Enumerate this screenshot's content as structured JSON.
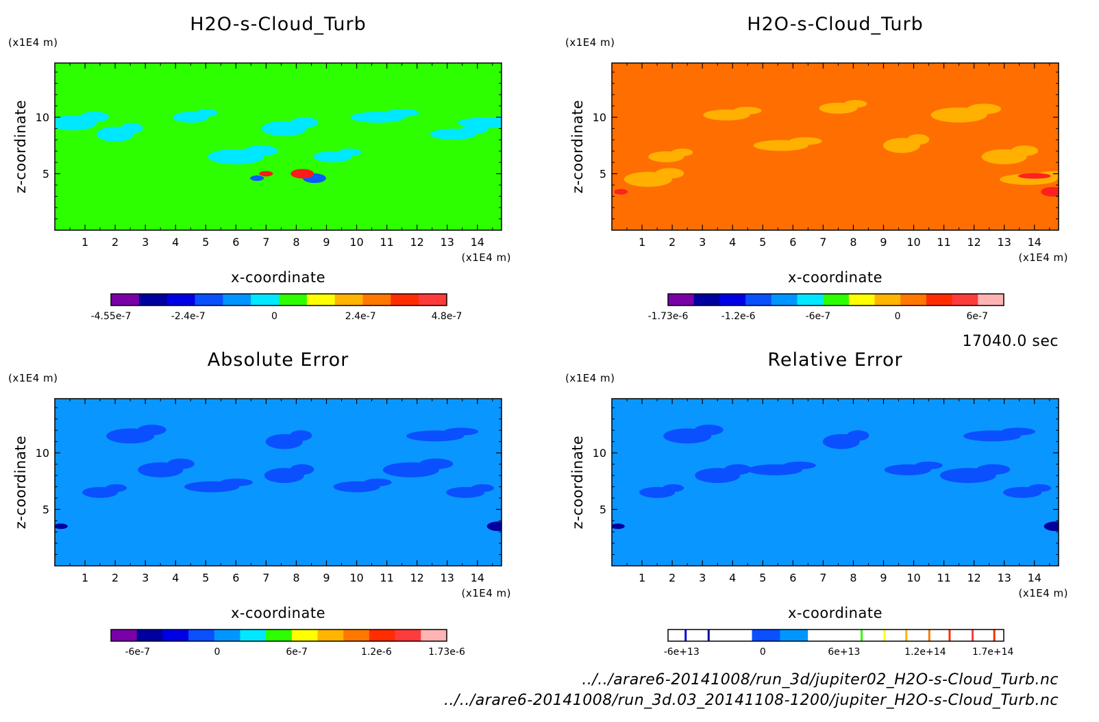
{
  "chart_data": [
    {
      "type": "heatmap",
      "title": "H2O-s-Cloud_Turb",
      "xlabel": "x-coordinate",
      "ylabel": "z-coordinate",
      "x_unit": "(x1E4 m)",
      "z_unit": "(x1E4 m)",
      "x_ticks": [
        "1",
        "2",
        "3",
        "4",
        "5",
        "6",
        "7",
        "8",
        "9",
        "10",
        "11",
        "12",
        "13",
        "14"
      ],
      "z_ticks": [
        "5",
        "10"
      ],
      "xlim": [
        0,
        14.8
      ],
      "zlim": [
        0,
        14.8
      ],
      "background_color": "#2dff00",
      "features": [
        {
          "color": "#00e8ff",
          "shapes": [
            [
              4.5,
              10
            ],
            [
              7.6,
              9.0
            ],
            [
              10.7,
              10
            ],
            [
              2.0,
              8.5
            ],
            [
              13.2,
              8.5
            ],
            [
              6.0,
              6.5
            ],
            [
              9.2,
              6.5
            ],
            [
              0.6,
              9.5
            ],
            [
              14.3,
              9.5
            ]
          ]
        },
        {
          "color": "#0a5aff",
          "shapes": [
            [
              6.7,
              4.6
            ],
            [
              8.6,
              4.6
            ]
          ]
        },
        {
          "color": "#ff1a1a",
          "shapes": [
            [
              7.0,
              5.0
            ],
            [
              8.2,
              5.0
            ]
          ]
        }
      ],
      "colorbar": {
        "colors": [
          "#7a00a8",
          "#0000a0",
          "#0000e6",
          "#0a50ff",
          "#0096ff",
          "#00e8ff",
          "#2dff00",
          "#ffff00",
          "#ffb400",
          "#ff7800",
          "#ff2d00",
          "#ff3c3c"
        ],
        "tick_labels": [
          "-4.55e-7",
          "-2.4e-7",
          "0",
          "2.4e-7",
          "4.8e-7"
        ],
        "tick_values": [
          -4.55e-07,
          -2.4e-07,
          0,
          2.4e-07,
          4.8e-07
        ],
        "range": [
          -4.55e-07,
          4.8e-07
        ]
      }
    },
    {
      "type": "heatmap",
      "title": "H2O-s-Cloud_Turb",
      "xlabel": "x-coordinate",
      "ylabel": "z-coordinate",
      "x_unit": "(x1E4 m)",
      "z_unit": "(x1E4 m)",
      "x_ticks": [
        "1",
        "2",
        "3",
        "4",
        "5",
        "6",
        "7",
        "8",
        "9",
        "10",
        "11",
        "12",
        "13",
        "14"
      ],
      "z_ticks": [
        "5",
        "10"
      ],
      "xlim": [
        0,
        14.8
      ],
      "zlim": [
        0,
        14.8
      ],
      "background_color": "#ff6e00",
      "features": [
        {
          "color": "#ffb000",
          "shapes": [
            [
              1.8,
              6.5
            ],
            [
              13.0,
              6.5
            ],
            [
              5.6,
              7.5
            ],
            [
              9.6,
              7.5
            ],
            [
              3.8,
              10.2
            ],
            [
              11.5,
              10.2
            ],
            [
              7.5,
              10.8
            ],
            [
              1.2,
              4.5
            ],
            [
              13.8,
              4.5
            ]
          ]
        },
        {
          "color": "#ff2020",
          "shapes": [
            [
              0.3,
              3.4
            ],
            [
              14.6,
              3.4
            ],
            [
              14.0,
              4.8
            ]
          ]
        }
      ],
      "colorbar": {
        "colors": [
          "#7a00a8",
          "#0000a0",
          "#0000e6",
          "#0a50ff",
          "#0096ff",
          "#00e8ff",
          "#2dff00",
          "#ffff00",
          "#ffb400",
          "#ff7800",
          "#ff2d00",
          "#ff3c3c",
          "#ffb4b4"
        ],
        "tick_labels": [
          "-1.73e-6",
          "-1.2e-6",
          "-6e-7",
          "0",
          "6e-7"
        ],
        "tick_values": [
          -1.73e-06,
          -1.2e-06,
          -6e-07,
          0,
          6e-07
        ],
        "range": [
          -1.73e-06,
          8e-07
        ]
      }
    },
    {
      "type": "heatmap",
      "title": "Absolute Error",
      "xlabel": "x-coordinate",
      "ylabel": "z-coordinate",
      "x_unit": "(x1E4 m)",
      "z_unit": "(x1E4 m)",
      "x_ticks": [
        "1",
        "2",
        "3",
        "4",
        "5",
        "6",
        "7",
        "8",
        "9",
        "10",
        "11",
        "12",
        "13",
        "14"
      ],
      "z_ticks": [
        "5",
        "10"
      ],
      "xlim": [
        0,
        14.8
      ],
      "zlim": [
        0,
        14.8
      ],
      "background_color": "#0a96ff",
      "features": [
        {
          "color": "#0a50ff",
          "shapes": [
            [
              1.5,
              6.5
            ],
            [
              3.5,
              8.5
            ],
            [
              5.2,
              7.0
            ],
            [
              7.6,
              11.0
            ],
            [
              10.0,
              7.0
            ],
            [
              11.8,
              8.5
            ],
            [
              13.6,
              6.5
            ],
            [
              2.5,
              11.5
            ],
            [
              12.6,
              11.5
            ],
            [
              7.6,
              8.0
            ]
          ]
        },
        {
          "color": "#0000a0",
          "shapes": [
            [
              0.2,
              3.5
            ],
            [
              14.7,
              3.5
            ]
          ]
        }
      ],
      "colorbar": {
        "colors": [
          "#7a00a8",
          "#0000a0",
          "#0000e6",
          "#0a50ff",
          "#0096ff",
          "#00e8ff",
          "#2dff00",
          "#ffff00",
          "#ffb400",
          "#ff7800",
          "#ff2d00",
          "#ff3c3c",
          "#ffb4b4"
        ],
        "tick_labels": [
          "-6e-7",
          "0",
          "6e-7",
          "1.2e-6",
          "1.73e-6"
        ],
        "tick_values": [
          -6e-07,
          0,
          6e-07,
          1.2e-06,
          1.73e-06
        ],
        "range": [
          -8e-07,
          1.73e-06
        ]
      }
    },
    {
      "type": "heatmap",
      "title": "Relative Error",
      "xlabel": "x-coordinate",
      "ylabel": "z-coordinate",
      "x_unit": "(x1E4 m)",
      "z_unit": "(x1E4 m)",
      "x_ticks": [
        "1",
        "2",
        "3",
        "4",
        "5",
        "6",
        "7",
        "8",
        "9",
        "10",
        "11",
        "12",
        "13",
        "14"
      ],
      "z_ticks": [
        "5",
        "10"
      ],
      "xlim": [
        0,
        14.8
      ],
      "zlim": [
        0,
        14.8
      ],
      "background_color": "#0a96ff",
      "features": [
        {
          "color": "#0a50ff",
          "shapes": [
            [
              1.5,
              6.5
            ],
            [
              3.5,
              8.0
            ],
            [
              5.4,
              8.5
            ],
            [
              7.6,
              11.0
            ],
            [
              9.8,
              8.5
            ],
            [
              11.8,
              8.0
            ],
            [
              13.6,
              6.5
            ],
            [
              2.5,
              11.5
            ],
            [
              12.6,
              11.5
            ]
          ]
        },
        {
          "color": "#0000a0",
          "shapes": [
            [
              0.2,
              3.5
            ],
            [
              14.7,
              3.5
            ]
          ]
        }
      ],
      "colorbar": {
        "colors": [
          "#ffffff",
          "#ffffff",
          "#ffffff",
          "#0a50ff",
          "#0096ff",
          "#ffffff",
          "#ffffff",
          "#ffffff",
          "#ffffff",
          "#ffffff",
          "#ffffff",
          "#ffffff"
        ],
        "tick_labels": [
          "-6e+13",
          "0",
          "6e+13",
          "1.2e+14",
          "1.7e+14"
        ],
        "tick_values": [
          -60000000000000.0,
          0,
          60000000000000.0,
          120000000000000.0,
          170000000000000.0
        ],
        "range": [
          -70000000000000.0,
          178000000000000.0
        ],
        "line_marks": [
          {
            "value": -57000000000000.0,
            "color": "#0000e6"
          },
          {
            "value": -40000000000000.0,
            "color": "#0000a0"
          },
          {
            "value": 73000000000000.0,
            "color": "#2dff00"
          },
          {
            "value": 90000000000000.0,
            "color": "#ffff00"
          },
          {
            "value": 106000000000000.0,
            "color": "#ffb400"
          },
          {
            "value": 123000000000000.0,
            "color": "#ff7800"
          },
          {
            "value": 138000000000000.0,
            "color": "#ff2d00"
          },
          {
            "value": 155000000000000.0,
            "color": "#ff3c3c"
          },
          {
            "value": 171000000000000.0,
            "color": "#ff2d00"
          }
        ]
      }
    }
  ],
  "time_label": "17040.0 sec",
  "file_paths": [
    "../../arare6-20141008/run_3d/jupiter02_H2O-s-Cloud_Turb.nc",
    "../../arare6-20141008/run_3d.03_20141108-1200/jupiter_H2O-s-Cloud_Turb.nc"
  ]
}
